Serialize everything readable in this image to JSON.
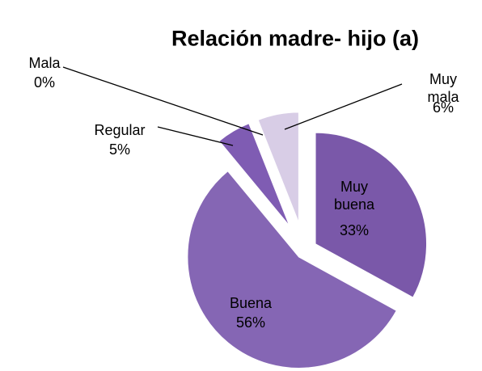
{
  "chart_data": {
    "type": "pie",
    "title": "Relación madre- hijo (a)",
    "categories": [
      "Muy buena",
      "Buena",
      "Regular",
      "Mala",
      "Muy mala"
    ],
    "values": [
      33,
      56,
      5,
      0,
      6
    ],
    "value_labels": [
      "33%",
      "56%",
      "5%",
      "0%",
      "6%"
    ],
    "colors": [
      "#7a58a9",
      "#8566b4",
      "#7f5cb3",
      "#8a6cb8",
      "#d8cde6"
    ]
  }
}
